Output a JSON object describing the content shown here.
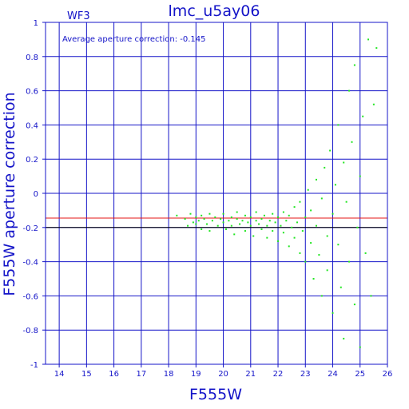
{
  "chart_data": {
    "type": "scatter",
    "title": "lmc_u5ay06",
    "panel_label": "WF3",
    "xlabel": "F555W",
    "ylabel": "F555W aperture correction",
    "xlim": [
      13.5,
      26
    ],
    "ylim": [
      -1,
      1
    ],
    "x_ticks": [
      "14",
      "15",
      "16",
      "17",
      "18",
      "19",
      "20",
      "21",
      "22",
      "23",
      "24",
      "25",
      "26"
    ],
    "y_ticks": [
      "-1",
      "-0.8",
      "-0.6",
      "-0.4",
      "-0.2",
      "0",
      "0.2",
      "0.4",
      "0.6",
      "0.8",
      "1"
    ],
    "grid": true,
    "annotation": "Average aperture correction: -0.145",
    "average": -0.145,
    "reference_line": -0.2,
    "colors": {
      "axes": "#1414c8",
      "points": "#22e622",
      "average_line": "#e61414",
      "reference_line": "#000000"
    },
    "series": [
      {
        "points": [
          [
            18.3,
            -0.13
          ],
          [
            18.6,
            -0.15
          ],
          [
            18.7,
            -0.19
          ],
          [
            18.8,
            -0.12
          ],
          [
            18.9,
            -0.17
          ],
          [
            19.0,
            -0.14
          ],
          [
            19.0,
            -0.18
          ],
          [
            19.1,
            -0.16
          ],
          [
            19.2,
            -0.21
          ],
          [
            19.2,
            -0.13
          ],
          [
            19.3,
            -0.15
          ],
          [
            19.4,
            -0.18
          ],
          [
            19.5,
            -0.12
          ],
          [
            19.5,
            -0.22
          ],
          [
            19.6,
            -0.16
          ],
          [
            19.7,
            -0.14
          ],
          [
            19.8,
            -0.19
          ],
          [
            19.9,
            -0.15
          ],
          [
            20.0,
            -0.17
          ],
          [
            20.0,
            -0.12
          ],
          [
            20.1,
            -0.21
          ],
          [
            20.2,
            -0.16
          ],
          [
            20.3,
            -0.14
          ],
          [
            20.3,
            -0.19
          ],
          [
            20.4,
            -0.24
          ],
          [
            20.5,
            -0.15
          ],
          [
            20.5,
            -0.11
          ],
          [
            20.6,
            -0.18
          ],
          [
            20.7,
            -0.16
          ],
          [
            20.8,
            -0.22
          ],
          [
            20.8,
            -0.13
          ],
          [
            20.9,
            -0.17
          ],
          [
            21.0,
            -0.19
          ],
          [
            21.0,
            -0.14
          ],
          [
            21.1,
            -0.25
          ],
          [
            21.2,
            -0.16
          ],
          [
            21.2,
            -0.11
          ],
          [
            21.3,
            -0.18
          ],
          [
            21.4,
            -0.21
          ],
          [
            21.4,
            -0.15
          ],
          [
            21.5,
            -0.13
          ],
          [
            21.6,
            -0.19
          ],
          [
            21.6,
            -0.26
          ],
          [
            21.7,
            -0.16
          ],
          [
            21.8,
            -0.12
          ],
          [
            21.8,
            -0.22
          ],
          [
            21.9,
            -0.17
          ],
          [
            22.0,
            -0.14
          ],
          [
            22.0,
            -0.28
          ],
          [
            22.1,
            -0.19
          ],
          [
            22.2,
            -0.11
          ],
          [
            22.2,
            -0.23
          ],
          [
            22.3,
            -0.16
          ],
          [
            22.4,
            -0.31
          ],
          [
            22.4,
            -0.13
          ],
          [
            22.5,
            -0.2
          ],
          [
            22.6,
            -0.08
          ],
          [
            22.6,
            -0.26
          ],
          [
            22.7,
            -0.17
          ],
          [
            22.8,
            -0.35
          ],
          [
            22.8,
            -0.05
          ],
          [
            22.9,
            -0.22
          ],
          [
            23.0,
            -0.14
          ],
          [
            23.0,
            -0.4
          ],
          [
            23.1,
            0.02
          ],
          [
            23.2,
            -0.29
          ],
          [
            23.2,
            -0.1
          ],
          [
            23.3,
            -0.5
          ],
          [
            23.4,
            0.08
          ],
          [
            23.4,
            -0.19
          ],
          [
            23.5,
            -0.36
          ],
          [
            23.6,
            -0.03
          ],
          [
            23.6,
            -0.6
          ],
          [
            23.7,
            0.15
          ],
          [
            23.8,
            -0.25
          ],
          [
            23.8,
            -0.45
          ],
          [
            23.9,
            0.25
          ],
          [
            24.0,
            -0.12
          ],
          [
            24.0,
            -0.7
          ],
          [
            24.1,
            0.05
          ],
          [
            24.2,
            -0.3
          ],
          [
            24.2,
            0.4
          ],
          [
            24.3,
            -0.55
          ],
          [
            24.4,
            0.18
          ],
          [
            24.4,
            -0.85
          ],
          [
            24.5,
            -0.05
          ],
          [
            24.6,
            0.6
          ],
          [
            24.6,
            -0.4
          ],
          [
            24.7,
            0.3
          ],
          [
            24.8,
            -0.65
          ],
          [
            24.8,
            0.75
          ],
          [
            24.9,
            -0.2
          ],
          [
            25.0,
            0.1
          ],
          [
            25.0,
            -0.9
          ],
          [
            25.1,
            0.45
          ],
          [
            25.2,
            -0.35
          ],
          [
            25.3,
            0.9
          ],
          [
            25.4,
            -0.6
          ],
          [
            25.5,
            0.52
          ],
          [
            25.6,
            0.85
          ]
        ]
      }
    ]
  }
}
